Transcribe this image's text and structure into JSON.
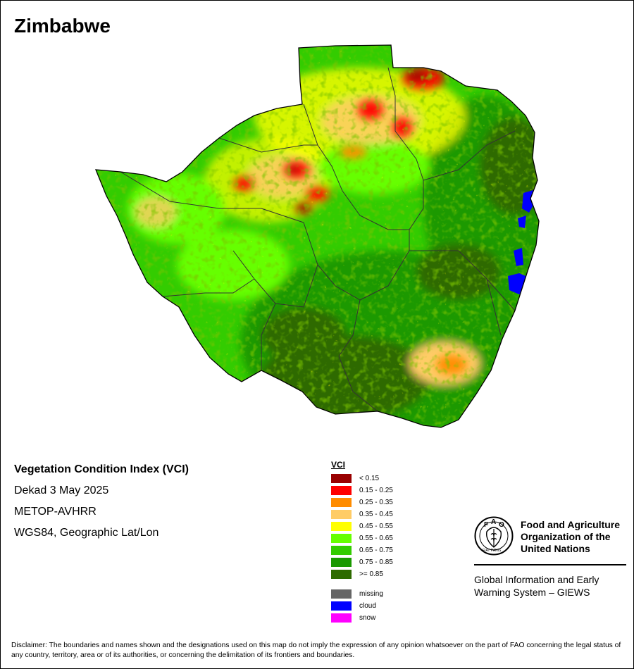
{
  "title": "Zimbabwe",
  "info": {
    "index_name": "Vegetation Condition Index (VCI)",
    "period": "Dekad 3 May 2025",
    "sensor": "METOP-AVHRR",
    "projection": "WGS84, Geographic Lat/Lon"
  },
  "legend": {
    "title": "VCI",
    "classes": [
      {
        "label": "< 0.15",
        "color": "#990000"
      },
      {
        "label": "0.15 - 0.25",
        "color": "#ff0000"
      },
      {
        "label": "0.25 - 0.35",
        "color": "#ff8c00"
      },
      {
        "label": "0.35 - 0.45",
        "color": "#ffcc66"
      },
      {
        "label": "0.45 - 0.55",
        "color": "#ffff00"
      },
      {
        "label": "0.55 - 0.65",
        "color": "#66ff00"
      },
      {
        "label": "0.65 - 0.75",
        "color": "#33cc00"
      },
      {
        "label": "0.75 - 0.85",
        "color": "#1a9900"
      },
      {
        "label": ">= 0.85",
        "color": "#2e6b00"
      }
    ],
    "special": [
      {
        "label": "missing",
        "color": "#666666"
      },
      {
        "label": "cloud",
        "color": "#0000ff"
      },
      {
        "label": "snow",
        "color": "#ff00ff"
      }
    ]
  },
  "logo": {
    "letters": "FAO",
    "motto": "FIAT PANIS",
    "org_line1": "Food and Agriculture",
    "org_line2": "Organization of the",
    "org_line3": "United Nations",
    "system_line1": "Global Information and Early",
    "system_line2": "Warning System – GIEWS"
  },
  "disclaimer": "Disclaimer: The boundaries and names shown and the designations used on this map do not imply the expression of any opinion whatsoever on the part of FAO concerning the legal status of any country, territory, area or of its authorities, or concerning the delimitation of its frontiers and boundaries."
}
